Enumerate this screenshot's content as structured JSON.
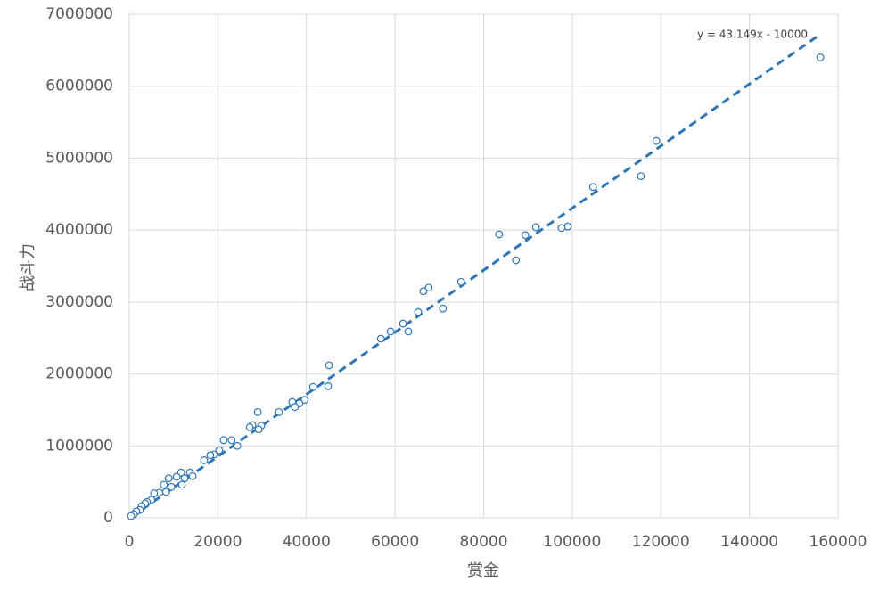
{
  "chart_data": {
    "type": "scatter",
    "x_label": "赏金",
    "y_label": "战斗力",
    "xlim": [
      0,
      160000
    ],
    "xticks": [
      0,
      20000,
      40000,
      60000,
      80000,
      100000,
      120000,
      140000,
      160000
    ],
    "ylim": [
      0,
      7000000
    ],
    "yticks": [
      0,
      1000000,
      2000000,
      3000000,
      4000000,
      5000000,
      6000000,
      7000000
    ],
    "grid": true,
    "color": "#2e75b6",
    "trendline": {
      "label": "y = 43.149x - 10000",
      "slope": 43.149,
      "intercept": -10000
    },
    "x": [
      156000,
      119000,
      115500,
      104700,
      99000,
      97600,
      91800,
      89400,
      83500,
      87300,
      74900,
      67600,
      66400,
      70800,
      65200,
      61800,
      63000,
      59000,
      56800,
      45100,
      44900,
      41500,
      39600,
      38400,
      36800,
      37400,
      33800,
      29000,
      29800,
      27800,
      27200,
      29200,
      23100,
      21300,
      24400,
      20300,
      19100,
      18300,
      16900,
      13700,
      11700,
      12500,
      14300,
      10700,
      11900,
      8900,
      7800,
      8300,
      6800,
      5600,
      9500,
      5000,
      4000,
      3600,
      2800,
      2400,
      1600,
      1000,
      400
    ],
    "y": [
      6400000,
      5240000,
      4750000,
      4600000,
      4050000,
      4030000,
      4040000,
      3930000,
      3940000,
      3580000,
      3280000,
      3200000,
      3150000,
      2910000,
      2860000,
      2700000,
      2590000,
      2590000,
      2490000,
      2120000,
      1830000,
      1820000,
      1640000,
      1590000,
      1610000,
      1540000,
      1470000,
      1470000,
      1280000,
      1290000,
      1260000,
      1230000,
      1080000,
      1080000,
      1000000,
      940000,
      880000,
      870000,
      800000,
      630000,
      630000,
      550000,
      580000,
      570000,
      460000,
      550000,
      460000,
      360000,
      350000,
      340000,
      430000,
      250000,
      220000,
      200000,
      160000,
      110000,
      90000,
      50000,
      25000
    ]
  }
}
